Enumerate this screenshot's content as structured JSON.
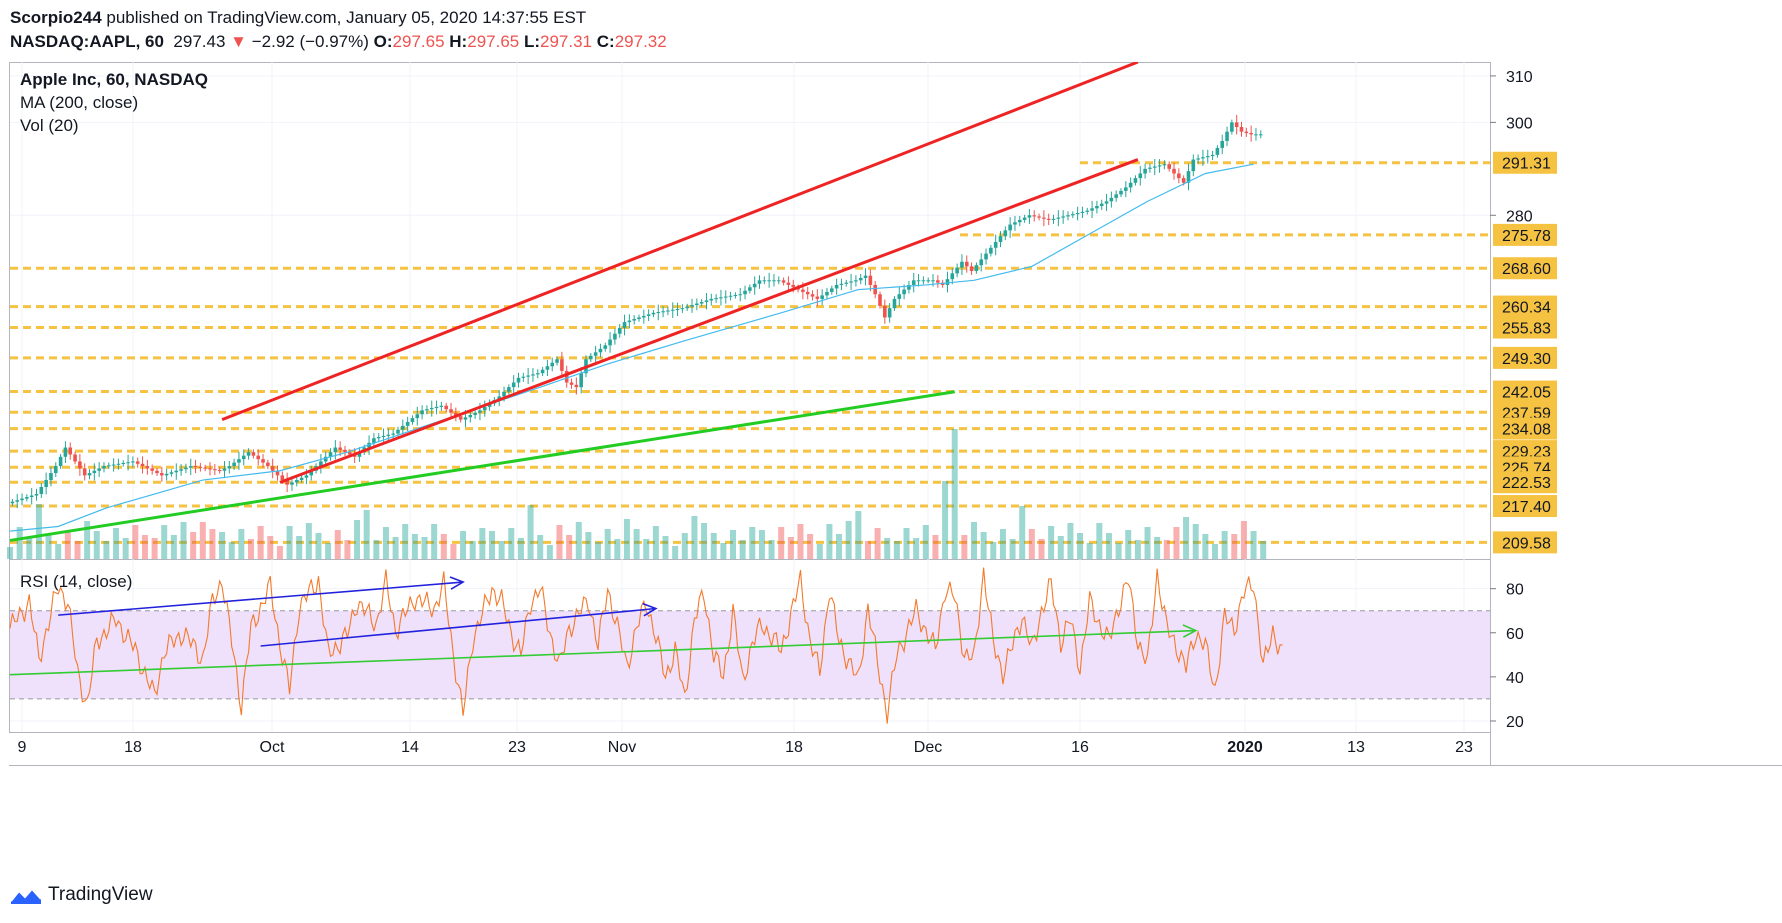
{
  "header": {
    "author": "Scorpio244",
    "published_text": "published on TradingView.com, January 05, 2020 14:37:55 EST",
    "symbol": "NASDAQ:AAPL, 60",
    "last": "297.43",
    "change": "−2.92 (−0.97%)",
    "o_label": "O:",
    "o_value": "297.65",
    "h_label": "H:",
    "h_value": "297.65",
    "l_label": "L:",
    "l_value": "297.31",
    "c_label": "C:",
    "c_value": "297.32"
  },
  "legend": {
    "title": "Apple Inc, 60, NASDAQ",
    "ma": "MA (200, close)",
    "vol": "Vol (20)"
  },
  "rsi_legend": "RSI (14, close)",
  "brand": "TradingView",
  "colors": {
    "channel": "#ee2424",
    "support": "#22cc22",
    "ma": "#44bbee",
    "levels": "#f5c242",
    "rsi": "#f47a2b",
    "rsi_band": "#efe0fb",
    "rsi_trend_blue": "#2222dd",
    "rsi_trend_green": "#33cc33",
    "up": "#26a69a",
    "down": "#ef5350"
  },
  "chart_data": [
    {
      "type": "candlestick",
      "title": "Apple Inc, 60, NASDAQ",
      "x_ticks": [
        "9",
        "18",
        "Oct",
        "14",
        "23",
        "Nov",
        "18",
        "Dec",
        "16",
        "2020",
        "13",
        "23"
      ],
      "y_ticks": [
        310,
        300,
        280
      ],
      "ylim": [
        206,
        313
      ],
      "price_levels": [
        "291.31",
        "275.78",
        "268.60",
        "260.34",
        "255.83",
        "249.30",
        "242.05",
        "237.59",
        "234.08",
        "229.23",
        "225.74",
        "222.53",
        "217.40",
        "209.58"
      ],
      "price_path": [
        [
          0,
          218
        ],
        [
          3,
          220
        ],
        [
          5,
          226
        ],
        [
          6,
          230
        ],
        [
          8,
          224
        ],
        [
          10,
          226
        ],
        [
          13,
          227
        ],
        [
          16,
          224
        ],
        [
          19,
          226
        ],
        [
          22,
          225
        ],
        [
          23,
          226
        ],
        [
          25,
          229
        ],
        [
          27,
          226
        ],
        [
          29,
          222
        ],
        [
          31,
          224
        ],
        [
          34,
          230
        ],
        [
          36,
          228
        ],
        [
          38,
          232
        ],
        [
          40,
          233
        ],
        [
          43,
          238
        ],
        [
          45,
          239
        ],
        [
          47,
          236
        ],
        [
          49,
          238
        ],
        [
          51,
          241
        ],
        [
          53,
          245
        ],
        [
          55,
          246
        ],
        [
          57,
          249
        ],
        [
          58,
          244
        ],
        [
          59,
          243
        ],
        [
          60,
          249
        ],
        [
          62,
          252
        ],
        [
          64,
          257
        ],
        [
          67,
          259
        ],
        [
          70,
          260
        ],
        [
          73,
          262
        ],
        [
          76,
          263
        ],
        [
          78,
          266
        ],
        [
          80,
          266
        ],
        [
          82,
          264
        ],
        [
          84,
          262
        ],
        [
          86,
          265
        ],
        [
          88,
          266
        ],
        [
          89,
          267
        ],
        [
          90,
          263
        ],
        [
          91,
          258
        ],
        [
          92,
          262
        ],
        [
          94,
          266
        ],
        [
          96,
          266
        ],
        [
          97,
          265
        ],
        [
          99,
          270
        ],
        [
          100,
          268
        ],
        [
          102,
          273
        ],
        [
          104,
          278
        ],
        [
          106,
          280
        ],
        [
          108,
          279
        ],
        [
          110,
          280
        ],
        [
          112,
          281
        ],
        [
          114,
          283
        ],
        [
          116,
          286
        ],
        [
          118,
          290
        ],
        [
          120,
          291
        ],
        [
          121,
          289
        ],
        [
          122,
          287
        ],
        [
          123,
          292
        ],
        [
          125,
          293
        ],
        [
          126,
          296
        ],
        [
          127,
          300
        ],
        [
          128,
          298
        ],
        [
          129,
          297.43
        ]
      ],
      "ma200_path": [
        [
          0,
          212
        ],
        [
          5,
          213
        ],
        [
          10,
          217
        ],
        [
          20,
          223
        ],
        [
          28,
          225
        ],
        [
          35,
          229
        ],
        [
          45,
          236
        ],
        [
          55,
          243
        ],
        [
          62,
          248
        ],
        [
          70,
          253
        ],
        [
          80,
          259
        ],
        [
          88,
          264
        ],
        [
          95,
          265
        ],
        [
          100,
          266
        ],
        [
          106,
          269
        ],
        [
          112,
          276
        ],
        [
          118,
          283
        ],
        [
          124,
          289
        ],
        [
          129,
          291
        ]
      ],
      "annotations": {
        "upper_channel": [
          [
            22,
            236
          ],
          [
            117,
            313
          ]
        ],
        "lower_channel": [
          [
            28,
            222.5
          ],
          [
            117,
            292
          ]
        ],
        "support_line": [
          [
            0,
            210
          ],
          [
            98,
            242
          ]
        ]
      },
      "session_count": 130,
      "highlight_volume_spike_session": 98
    },
    {
      "type": "line",
      "title": "RSI (14, close)",
      "y_ticks": [
        80,
        60,
        40,
        20
      ],
      "ylim": [
        15,
        93
      ],
      "band": [
        30,
        70
      ],
      "rsi_path": [
        [
          0,
          62
        ],
        [
          2,
          74
        ],
        [
          3,
          48
        ],
        [
          5,
          81
        ],
        [
          6,
          74
        ],
        [
          7,
          42
        ],
        [
          8,
          27
        ],
        [
          9,
          56
        ],
        [
          11,
          66
        ],
        [
          13,
          52
        ],
        [
          15,
          31
        ],
        [
          16,
          52
        ],
        [
          18,
          60
        ],
        [
          20,
          48
        ],
        [
          21,
          74
        ],
        [
          22,
          84
        ],
        [
          23,
          56
        ],
        [
          24,
          27
        ],
        [
          25,
          62
        ],
        [
          27,
          81
        ],
        [
          28,
          55
        ],
        [
          29,
          34
        ],
        [
          30,
          72
        ],
        [
          32,
          84
        ],
        [
          33,
          50
        ],
        [
          35,
          59
        ],
        [
          36,
          74
        ],
        [
          38,
          64
        ],
        [
          39,
          83
        ],
        [
          40,
          61
        ],
        [
          42,
          76
        ],
        [
          44,
          71
        ],
        [
          45,
          82
        ],
        [
          46,
          50
        ],
        [
          47,
          23
        ],
        [
          48,
          57
        ],
        [
          50,
          80
        ],
        [
          51,
          74
        ],
        [
          52,
          60
        ],
        [
          53,
          50
        ],
        [
          54,
          74
        ],
        [
          55,
          80
        ],
        [
          56,
          60
        ],
        [
          57,
          45
        ],
        [
          58,
          62
        ],
        [
          60,
          75
        ],
        [
          61,
          54
        ],
        [
          62,
          80
        ],
        [
          64,
          45
        ],
        [
          65,
          62
        ],
        [
          66,
          74
        ],
        [
          67,
          58
        ],
        [
          68,
          40
        ],
        [
          69,
          52
        ],
        [
          70,
          30
        ],
        [
          71,
          66
        ],
        [
          72,
          78
        ],
        [
          73,
          50
        ],
        [
          74,
          40
        ],
        [
          75,
          70
        ],
        [
          76,
          38
        ],
        [
          77,
          55
        ],
        [
          78,
          64
        ],
        [
          80,
          52
        ],
        [
          82,
          84
        ],
        [
          83,
          56
        ],
        [
          84,
          42
        ],
        [
          85,
          80
        ],
        [
          86,
          56
        ],
        [
          88,
          38
        ],
        [
          89,
          72
        ],
        [
          90,
          46
        ],
        [
          91,
          24
        ],
        [
          92,
          50
        ],
        [
          94,
          70
        ],
        [
          96,
          52
        ],
        [
          97,
          80
        ],
        [
          98,
          76
        ],
        [
          99,
          50
        ],
        [
          100,
          48
        ],
        [
          101,
          88
        ],
        [
          102,
          55
        ],
        [
          103,
          42
        ],
        [
          104,
          54
        ],
        [
          105,
          68
        ],
        [
          106,
          52
        ],
        [
          107,
          70
        ],
        [
          108,
          82
        ],
        [
          109,
          56
        ],
        [
          110,
          66
        ],
        [
          111,
          44
        ],
        [
          112,
          74
        ],
        [
          113,
          64
        ],
        [
          114,
          56
        ],
        [
          115,
          72
        ],
        [
          116,
          84
        ],
        [
          117,
          56
        ],
        [
          118,
          46
        ],
        [
          119,
          87
        ],
        [
          120,
          62
        ],
        [
          121,
          54
        ],
        [
          122,
          44
        ],
        [
          123,
          60
        ],
        [
          124,
          54
        ],
        [
          125,
          34
        ],
        [
          126,
          67
        ],
        [
          127,
          62
        ],
        [
          128,
          78
        ],
        [
          129,
          83
        ],
        [
          130,
          44
        ],
        [
          131,
          61
        ],
        [
          132,
          50
        ]
      ],
      "annotations": {
        "blue_trend_1": [
          [
            5,
            68
          ],
          [
            47,
            83
          ]
        ],
        "blue_trend_2": [
          [
            26,
            54
          ],
          [
            67,
            71
          ]
        ],
        "green_trend": [
          [
            0,
            41
          ],
          [
            123,
            61
          ]
        ]
      }
    }
  ]
}
